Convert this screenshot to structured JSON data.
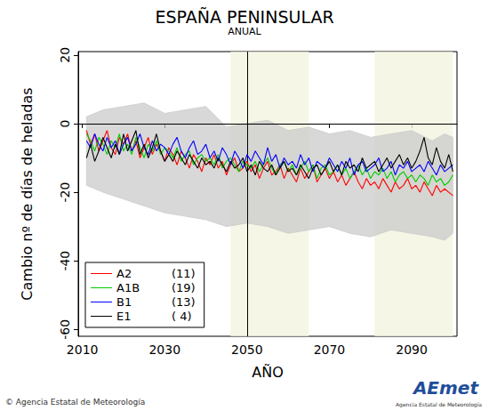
{
  "chart_data": {
    "type": "line",
    "title": "ESPAÑA PENINSULAR",
    "subtitle": "ANUAL",
    "x_label": "AÑO",
    "y_label": "Cambio nº de días de heladas",
    "xlim": [
      2009,
      2101
    ],
    "xticks": [
      2010,
      2030,
      2050,
      2070,
      2090
    ],
    "ylim": [
      -62,
      21
    ],
    "yticks": [
      -60,
      -40,
      -20,
      0,
      20
    ],
    "grid": false,
    "legend": "bottom-left",
    "reference_lines": {
      "x": 2050,
      "y": 0
    },
    "periods": [
      [
        2046,
        2065
      ],
      [
        2081,
        2100
      ]
    ],
    "envelope": {
      "color": "#c8c8c8",
      "x": [
        2011,
        2015,
        2020,
        2025,
        2030,
        2035,
        2040,
        2045,
        2050,
        2055,
        2060,
        2065,
        2070,
        2075,
        2080,
        2085,
        2090,
        2095,
        2098,
        2100
      ],
      "upper": [
        2,
        4,
        5,
        6,
        3,
        4,
        5,
        -1,
        0,
        1,
        -2,
        -1,
        -3,
        -2,
        -4,
        -3,
        -2,
        -5,
        -3,
        -4
      ],
      "lower": [
        -18,
        -20,
        -22,
        -24,
        -26,
        -27,
        -28,
        -30,
        -29,
        -30,
        -32,
        -31,
        -30,
        -32,
        -33,
        -31,
        -32,
        -33,
        -34,
        -32
      ]
    },
    "x": [
      2011,
      2012,
      2013,
      2014,
      2015,
      2016,
      2017,
      2018,
      2019,
      2020,
      2021,
      2022,
      2023,
      2024,
      2025,
      2026,
      2027,
      2028,
      2029,
      2030,
      2031,
      2032,
      2033,
      2034,
      2035,
      2036,
      2037,
      2038,
      2039,
      2040,
      2041,
      2042,
      2043,
      2044,
      2045,
      2046,
      2047,
      2048,
      2049,
      2050,
      2051,
      2052,
      2053,
      2054,
      2055,
      2056,
      2057,
      2058,
      2059,
      2060,
      2061,
      2062,
      2063,
      2064,
      2065,
      2066,
      2067,
      2068,
      2069,
      2070,
      2071,
      2072,
      2073,
      2074,
      2075,
      2076,
      2077,
      2078,
      2079,
      2080,
      2081,
      2082,
      2083,
      2084,
      2085,
      2086,
      2087,
      2088,
      2089,
      2090,
      2091,
      2092,
      2093,
      2094,
      2095,
      2096,
      2097,
      2098,
      2099,
      2100
    ],
    "series": [
      {
        "name": "A2",
        "count": "(11)",
        "color": "#ff0000",
        "values": [
          -2,
          -6,
          -3,
          -8,
          -5,
          -2,
          -7,
          -9,
          -4,
          -6,
          -3,
          -8,
          -5,
          -10,
          -7,
          -4,
          -9,
          -6,
          -8,
          -11,
          -7,
          -9,
          -12,
          -8,
          -10,
          -13,
          -9,
          -11,
          -14,
          -10,
          -12,
          -9,
          -13,
          -11,
          -15,
          -12,
          -10,
          -14,
          -13,
          -11,
          -14,
          -12,
          -16,
          -13,
          -11,
          -15,
          -14,
          -12,
          -16,
          -13,
          -15,
          -17,
          -13,
          -16,
          -14,
          -12,
          -17,
          -15,
          -13,
          -16,
          -14,
          -17,
          -15,
          -18,
          -16,
          -14,
          -17,
          -19,
          -16,
          -18,
          -17,
          -19,
          -16,
          -18,
          -20,
          -17,
          -19,
          -18,
          -16,
          -19,
          -18,
          -20,
          -17,
          -19,
          -21,
          -18,
          -20,
          -19,
          -20,
          -21
        ]
      },
      {
        "name": "A1B",
        "count": "(19)",
        "color": "#00cc00",
        "values": [
          -3,
          -5,
          -8,
          -4,
          -6,
          -9,
          -5,
          -7,
          -3,
          -8,
          -6,
          -9,
          -4,
          -7,
          -10,
          -6,
          -8,
          -5,
          -9,
          -7,
          -8,
          -10,
          -7,
          -11,
          -9,
          -8,
          -12,
          -10,
          -9,
          -11,
          -10,
          -12,
          -9,
          -13,
          -11,
          -10,
          -12,
          -14,
          -11,
          -12,
          -13,
          -11,
          -14,
          -12,
          -10,
          -13,
          -15,
          -12,
          -11,
          -14,
          -12,
          -15,
          -13,
          -11,
          -14,
          -12,
          -16,
          -13,
          -12,
          -15,
          -14,
          -12,
          -15,
          -13,
          -16,
          -14,
          -12,
          -15,
          -13,
          -16,
          -14,
          -15,
          -13,
          -16,
          -14,
          -17,
          -15,
          -14,
          -16,
          -15,
          -17,
          -15,
          -16,
          -18,
          -15,
          -17,
          -16,
          -18,
          -17,
          -15
        ]
      },
      {
        "name": "B1",
        "count": "(13)",
        "color": "#0000ff",
        "values": [
          -5,
          -7,
          -3,
          -6,
          -8,
          -4,
          -7,
          -5,
          -9,
          -6,
          -4,
          -8,
          -6,
          -3,
          -7,
          -9,
          -5,
          -8,
          -6,
          -7,
          -9,
          -6,
          -4,
          -8,
          -10,
          -7,
          -5,
          -9,
          -8,
          -6,
          -10,
          -8,
          -11,
          -7,
          -9,
          -12,
          -8,
          -10,
          -13,
          -9,
          -11,
          -8,
          -10,
          -12,
          -7,
          -11,
          -9,
          -13,
          -10,
          -12,
          -11,
          -13,
          -9,
          -12,
          -10,
          -14,
          -11,
          -12,
          -13,
          -10,
          -12,
          -14,
          -11,
          -13,
          -10,
          -15,
          -12,
          -11,
          -14,
          -13,
          -12,
          -10,
          -14,
          -13,
          -11,
          -15,
          -12,
          -13,
          -11,
          -14,
          -13,
          -12,
          -14,
          -11,
          -13,
          -15,
          -12,
          -14,
          -13,
          -12
        ]
      },
      {
        "name": "E1",
        "count": "( 4)",
        "color": "#000000",
        "values": [
          -10,
          -6,
          -11,
          -8,
          -4,
          -7,
          -10,
          -6,
          -9,
          -3,
          -8,
          -5,
          -2,
          -9,
          -6,
          -10,
          -7,
          -3,
          -8,
          -11,
          -9,
          -11,
          -8,
          -10,
          -12,
          -9,
          -11,
          -13,
          -10,
          -12,
          -11,
          -13,
          -10,
          -12,
          -14,
          -11,
          -13,
          -12,
          -10,
          -14,
          -12,
          -15,
          -11,
          -13,
          -14,
          -12,
          -15,
          -13,
          -11,
          -14,
          -13,
          -15,
          -12,
          -14,
          -16,
          -13,
          -12,
          -15,
          -13,
          -11,
          -14,
          -12,
          -15,
          -11,
          -13,
          -12,
          -14,
          -10,
          -13,
          -12,
          -11,
          -14,
          -12,
          -10,
          -13,
          -11,
          -9,
          -12,
          -10,
          -13,
          -11,
          -8,
          -4,
          -10,
          -12,
          -7,
          -11,
          -13,
          -9,
          -14
        ]
      }
    ],
    "credit": "© Agencia Estatal de Meteorología",
    "logo": "AEmet",
    "logo_subtitle": "Agencia Estatal de Meteorología"
  }
}
